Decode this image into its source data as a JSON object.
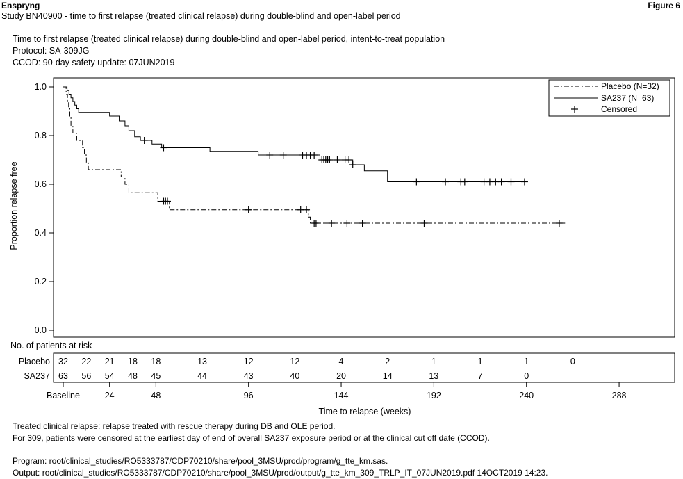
{
  "header": {
    "product": "Enspryng",
    "figure_label": "Figure 6",
    "study_line": "Study BN40900 - time to first relapse (treated clinical relapse) during double-blind and open-label period"
  },
  "subheader": {
    "line1": "Time to first relapse (treated clinical relapse) during double-blind and open-label period, intent-to-treat population",
    "line2": "Protocol: SA-309JG",
    "line3": "CCOD: 90-day safety update: 07JUN2019"
  },
  "footer": {
    "note1": "Treated clinical relapse: relapse treated with rescue therapy during DB and OLE period.",
    "note2": "For 309, patients were censored at the earliest day of end of overall SA237 exposure period or at the clinical cut off date (CCOD).",
    "program": "Program: root/clinical_studies/RO5333787/CDP70210/share/pool_3MSU/prod/program/g_tte_km.sas.",
    "output": "Output: root/clinical_studies/RO5333787/CDP70210/share/pool_3MSU/prod/output/g_tte_km_309_TRLP_IT_07JUN2019.pdf 14OCT2019 14:23."
  },
  "chart_data": {
    "type": "line",
    "subtype": "kaplan-meier-step",
    "title": "",
    "xlabel": "Time to relapse (weeks)",
    "ylabel": "Proportion relapse free",
    "xlim": [
      0,
      300
    ],
    "ylim": [
      0,
      1.0
    ],
    "x_ticks": [
      0,
      24,
      48,
      96,
      144,
      192,
      240,
      288
    ],
    "x_tick_labels": [
      "Baseline",
      "24",
      "48",
      "96",
      "144",
      "192",
      "240",
      "288"
    ],
    "y_ticks": [
      0.0,
      0.2,
      0.4,
      0.6,
      0.8,
      1.0
    ],
    "y_tick_labels": [
      "0.0",
      "0.2",
      "0.4",
      "0.6",
      "0.8",
      "1.0"
    ],
    "grid": false,
    "legend_position": "top-right",
    "legend": [
      {
        "label": "Placebo (N=32)",
        "style": "dash-dot"
      },
      {
        "label": "SA237 (N=63)",
        "style": "solid"
      },
      {
        "label": "Censored",
        "style": "marker"
      }
    ],
    "series": [
      {
        "name": "Placebo (N=32)",
        "style": "dash-dot",
        "steps": [
          [
            0,
            1.0
          ],
          [
            1.5,
            0.97
          ],
          [
            2.2,
            0.94
          ],
          [
            2.8,
            0.91
          ],
          [
            3.4,
            0.875
          ],
          [
            4,
            0.84
          ],
          [
            5,
            0.81
          ],
          [
            7,
            0.78
          ],
          [
            10,
            0.75
          ],
          [
            11,
            0.72
          ],
          [
            12,
            0.69
          ],
          [
            13,
            0.66
          ],
          [
            30,
            0.63
          ],
          [
            32,
            0.6
          ],
          [
            34,
            0.565
          ],
          [
            49,
            0.53
          ],
          [
            55,
            0.495
          ],
          [
            127,
            0.465
          ],
          [
            128,
            0.44
          ],
          [
            260,
            0.44
          ]
        ],
        "censored": [
          [
            52,
            0.53
          ],
          [
            53,
            0.53
          ],
          [
            54,
            0.53
          ],
          [
            96,
            0.495
          ],
          [
            123,
            0.495
          ],
          [
            126,
            0.495
          ],
          [
            130,
            0.44
          ],
          [
            131,
            0.44
          ],
          [
            139,
            0.44
          ],
          [
            147,
            0.44
          ],
          [
            155,
            0.44
          ],
          [
            187,
            0.44
          ],
          [
            257,
            0.44
          ]
        ]
      },
      {
        "name": "SA237 (N=63)",
        "style": "solid",
        "steps": [
          [
            0,
            1.0
          ],
          [
            2,
            0.985
          ],
          [
            3,
            0.97
          ],
          [
            4,
            0.955
          ],
          [
            5,
            0.94
          ],
          [
            6,
            0.925
          ],
          [
            7,
            0.91
          ],
          [
            8,
            0.895
          ],
          [
            24,
            0.88
          ],
          [
            29,
            0.86
          ],
          [
            32,
            0.84
          ],
          [
            34,
            0.82
          ],
          [
            37,
            0.795
          ],
          [
            40,
            0.78
          ],
          [
            46,
            0.765
          ],
          [
            51,
            0.75
          ],
          [
            76,
            0.735
          ],
          [
            101,
            0.72
          ],
          [
            133,
            0.7
          ],
          [
            150,
            0.68
          ],
          [
            156,
            0.655
          ],
          [
            168,
            0.61
          ],
          [
            240,
            0.61
          ]
        ],
        "censored": [
          [
            42,
            0.78
          ],
          [
            52,
            0.75
          ],
          [
            107,
            0.72
          ],
          [
            114,
            0.72
          ],
          [
            124,
            0.72
          ],
          [
            126,
            0.72
          ],
          [
            128,
            0.72
          ],
          [
            130,
            0.72
          ],
          [
            134,
            0.7
          ],
          [
            135,
            0.7
          ],
          [
            136,
            0.7
          ],
          [
            137,
            0.7
          ],
          [
            138,
            0.7
          ],
          [
            142,
            0.7
          ],
          [
            146,
            0.7
          ],
          [
            148,
            0.7
          ],
          [
            150,
            0.68
          ],
          [
            183,
            0.61
          ],
          [
            198,
            0.61
          ],
          [
            206,
            0.61
          ],
          [
            208,
            0.61
          ],
          [
            218,
            0.61
          ],
          [
            221,
            0.61
          ],
          [
            224,
            0.61
          ],
          [
            227,
            0.61
          ],
          [
            232,
            0.61
          ],
          [
            239,
            0.61
          ]
        ]
      }
    ],
    "risk_table": {
      "title": "No. of patients at risk",
      "rows": [
        {
          "label": "Placebo",
          "times": [
            0,
            12,
            24,
            36,
            48,
            72,
            96,
            120,
            144,
            168,
            192,
            216,
            240,
            264
          ],
          "counts": [
            "32",
            "22",
            "21",
            "18",
            "18",
            "13",
            "12",
            "12",
            "4",
            "2",
            "1",
            "1",
            "1",
            "0"
          ]
        },
        {
          "label": "SA237",
          "times": [
            0,
            12,
            24,
            36,
            48,
            72,
            96,
            120,
            144,
            168,
            192,
            216,
            240
          ],
          "counts": [
            "63",
            "56",
            "54",
            "48",
            "45",
            "44",
            "43",
            "40",
            "20",
            "14",
            "13",
            "7",
            "0"
          ]
        }
      ]
    }
  }
}
